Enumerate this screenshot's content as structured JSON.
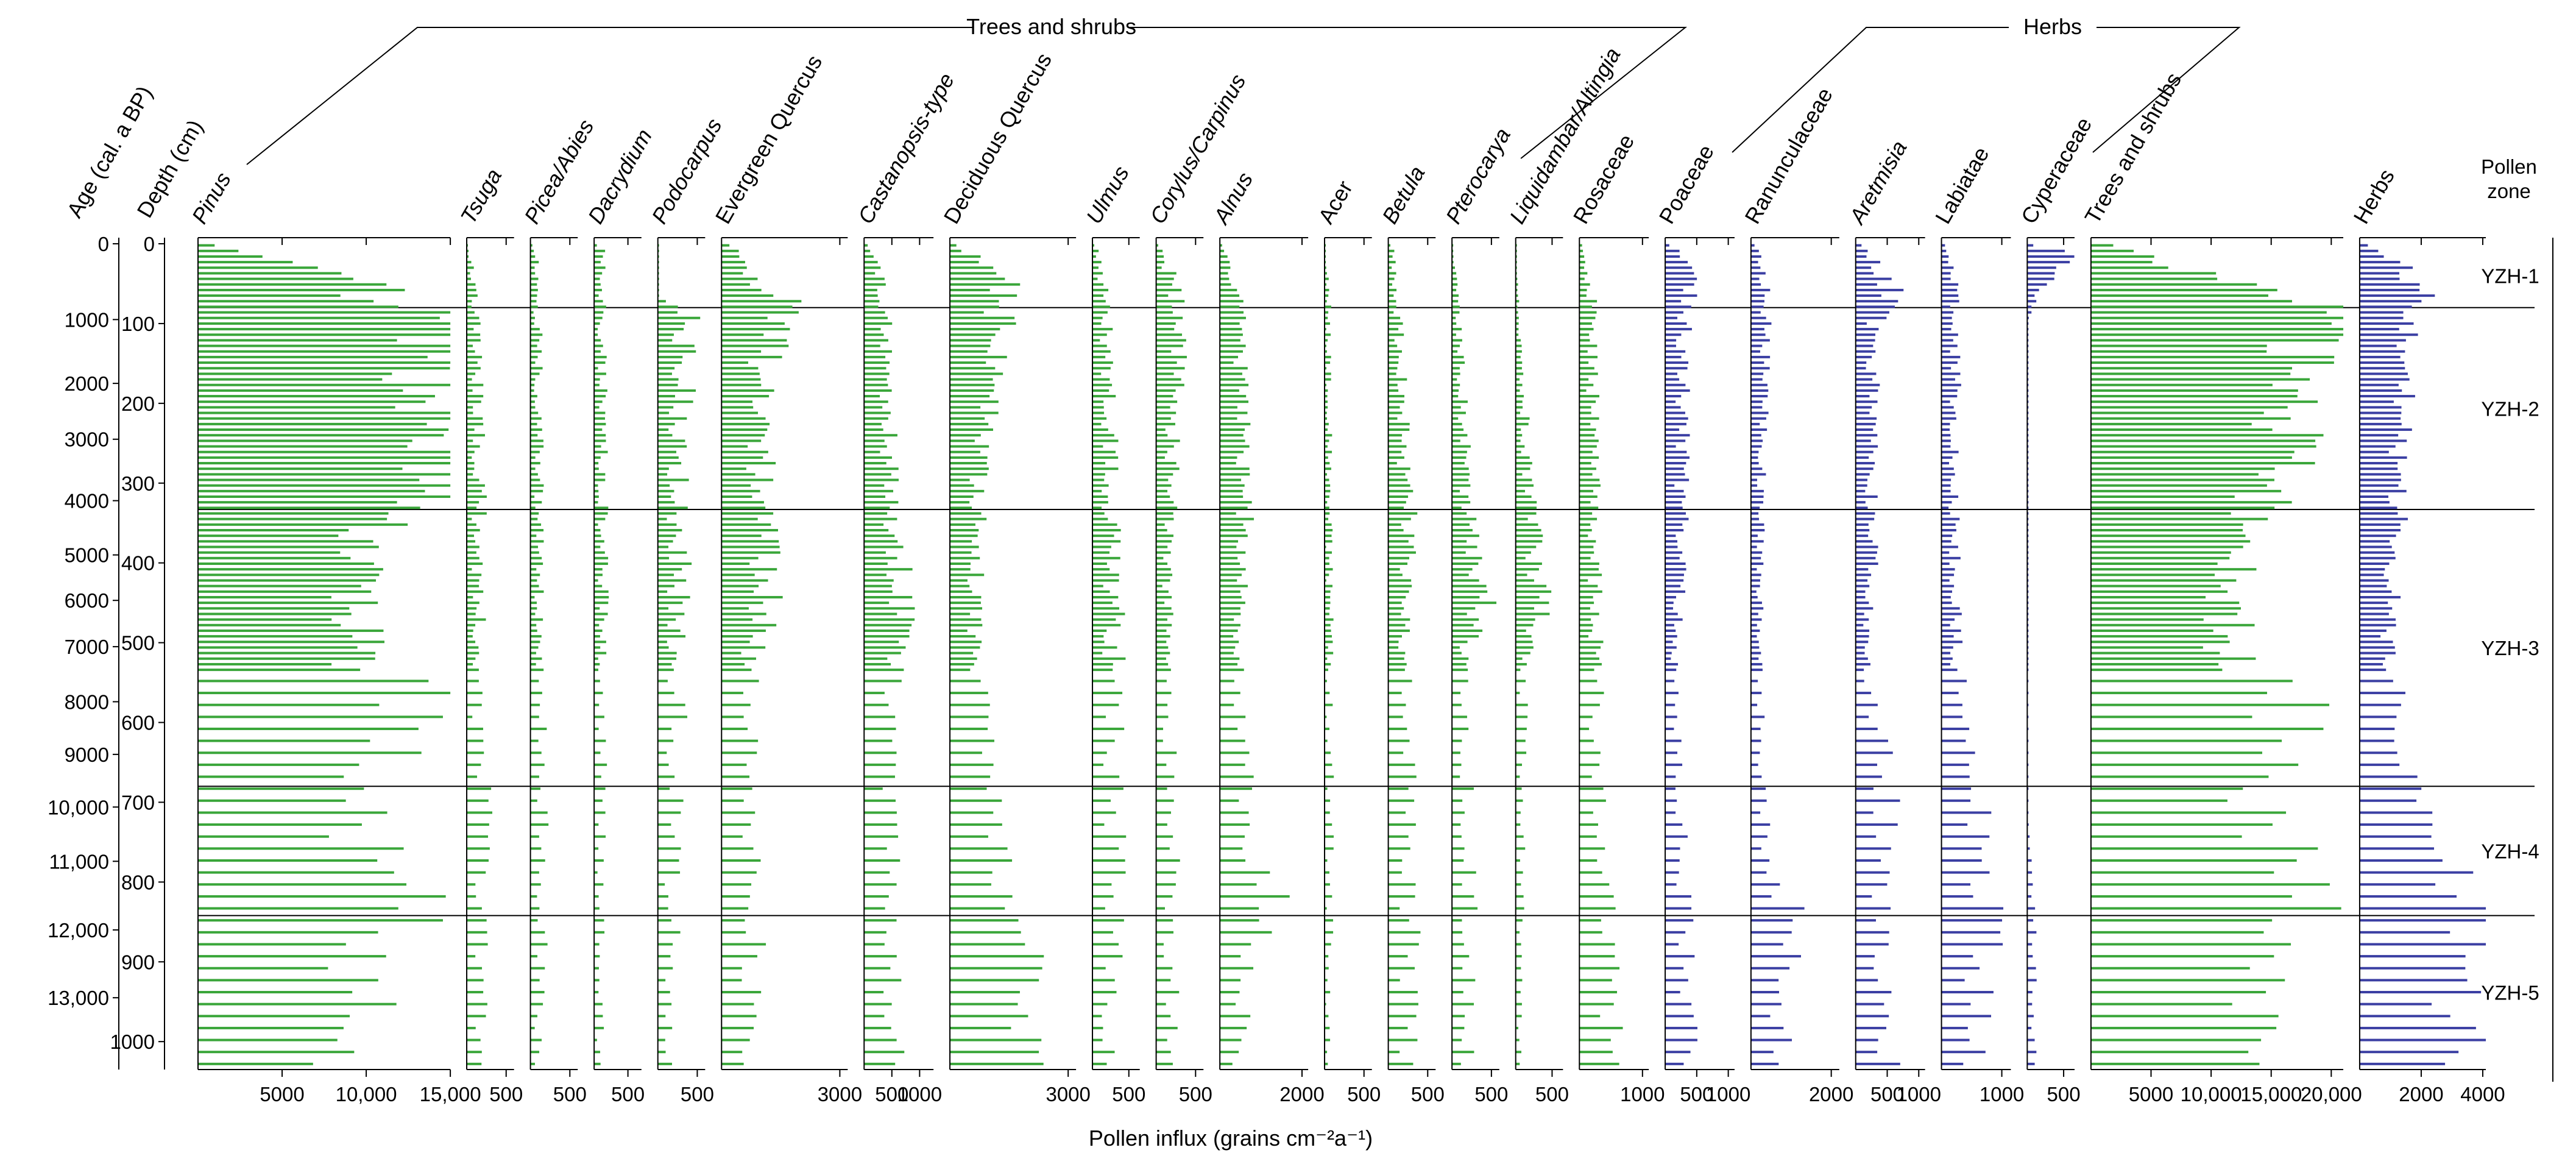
{
  "chart_data": {
    "type": "bar",
    "subtype": "pollen-influx-diagram",
    "xlabel": "Pollen influx (grains cm⁻²a⁻¹)",
    "left_axes": {
      "age_label": "Age (cal. a BP)",
      "depth_label": "Depth (cm)",
      "age_ticks": [
        "0",
        "1000",
        "2000",
        "3000",
        "4000",
        "5000",
        "6000",
        "7000",
        "8000",
        "9000",
        "10,000",
        "11,000",
        "12,000",
        "13,000"
      ],
      "depth_ticks": [
        "0",
        "100",
        "200",
        "300",
        "400",
        "500",
        "600",
        "700",
        "800",
        "900",
        "1000"
      ],
      "depth_range": [
        0,
        1035
      ]
    },
    "groups": [
      {
        "name": "Trees and shrubs"
      },
      {
        "name": "Herbs"
      }
    ],
    "zones_header": "Pollen\nzone",
    "zones": [
      {
        "name": "YZH-1",
        "from_depth": 0,
        "to_depth": 110
      },
      {
        "name": "YZH-2",
        "from_depth": 110,
        "to_depth": 510
      },
      {
        "name": "YZH-3",
        "from_depth": 510,
        "to_depth": 1010
      },
      {
        "name": "YZH-4",
        "from_depth": 1010,
        "to_depth": 1330
      },
      {
        "name": "YZH-5",
        "from_depth": 1330,
        "to_depth": 1535
      }
    ],
    "colors": {
      "trees": "#3aa63a",
      "herbs": "#3b3fa3",
      "axis": "#000000"
    },
    "taxa": [
      {
        "name": "Pinus",
        "italic": true,
        "group": "trees",
        "max": 15000,
        "tick_values": [
          5000,
          10000,
          15000
        ],
        "tick_labels": [
          "5000",
          "10,000",
          "15,000"
        ],
        "y_label": "",
        "profile": [
          [
            0,
            1000
          ],
          [
            12,
            2600
          ],
          [
            30,
            6000
          ],
          [
            45,
            9000
          ],
          [
            60,
            11000
          ],
          [
            75,
            8000
          ],
          [
            85,
            14800
          ],
          [
            150,
            14000
          ],
          [
            250,
            14200
          ],
          [
            330,
            13500
          ],
          [
            340,
            10500
          ],
          [
            420,
            9500
          ],
          [
            520,
            9000
          ],
          [
            560,
            14500
          ],
          [
            640,
            11000
          ],
          [
            700,
            9000
          ],
          [
            780,
            10500
          ],
          [
            840,
            13000
          ],
          [
            880,
            9000
          ],
          [
            940,
            10000
          ],
          [
            1000,
            8500
          ],
          [
            1035,
            6500
          ]
        ],
        "amp": 0.22
      },
      {
        "name": "Tsuga",
        "italic": true,
        "group": "trees",
        "max": 600,
        "tick_values": [
          500
        ],
        "tick_labels": [
          "500"
        ],
        "profile": [
          [
            0,
            0
          ],
          [
            30,
            80
          ],
          [
            100,
            120
          ],
          [
            300,
            160
          ],
          [
            600,
            150
          ],
          [
            800,
            260
          ],
          [
            1035,
            130
          ]
        ],
        "amp": 0.6
      },
      {
        "name": "Picea/Abies",
        "italic": true,
        "group": "trees",
        "max": 600,
        "tick_values": [
          500
        ],
        "tick_labels": [
          "500"
        ],
        "profile": [
          [
            0,
            60
          ],
          [
            100,
            100
          ],
          [
            500,
            120
          ],
          [
            800,
            160
          ],
          [
            1035,
            90
          ]
        ],
        "amp": 0.6
      },
      {
        "name": "Dacrydium",
        "italic": true,
        "group": "trees",
        "max": 700,
        "tick_values": [
          500
        ],
        "tick_labels": [
          "500"
        ],
        "profile": [
          [
            0,
            100
          ],
          [
            80,
            120
          ],
          [
            400,
            140
          ],
          [
            700,
            120
          ],
          [
            1035,
            90
          ]
        ],
        "amp": 0.6
      },
      {
        "name": "Podocarpus",
        "italic": true,
        "group": "trees",
        "max": 600,
        "tick_values": [
          500
        ],
        "tick_labels": [
          "500"
        ],
        "profile": [
          [
            0,
            0
          ],
          [
            70,
            0
          ],
          [
            80,
            380
          ],
          [
            250,
            300
          ],
          [
            500,
            260
          ],
          [
            800,
            200
          ],
          [
            1035,
            120
          ]
        ],
        "amp": 0.6
      },
      {
        "name": "Evergreen Quercus",
        "italic": false,
        "group": "trees",
        "max": 3200,
        "tick_values": [
          3000
        ],
        "tick_labels": [
          "3000"
        ],
        "profile": [
          [
            0,
            300
          ],
          [
            40,
            900
          ],
          [
            80,
            1600
          ],
          [
            150,
            1100
          ],
          [
            300,
            1000
          ],
          [
            450,
            1200
          ],
          [
            520,
            700
          ],
          [
            700,
            700
          ],
          [
            850,
            900
          ],
          [
            1035,
            700
          ]
        ],
        "amp": 0.4
      },
      {
        "name": "Castanopsis-type",
        "italic": true,
        "group": "trees",
        "max": 1250,
        "tick_values": [
          500,
          1000
        ],
        "tick_labels": [
          "500",
          "1000"
        ],
        "profile": [
          [
            0,
            100
          ],
          [
            80,
            400
          ],
          [
            300,
            450
          ],
          [
            450,
            700
          ],
          [
            520,
            550
          ],
          [
            800,
            500
          ],
          [
            1035,
            520
          ]
        ],
        "amp": 0.4
      },
      {
        "name": "Deciduous Quercus",
        "italic": false,
        "group": "trees",
        "max": 3200,
        "tick_values": [
          3000
        ],
        "tick_labels": [
          "3000"
        ],
        "profile": [
          [
            0,
            200
          ],
          [
            50,
            1500
          ],
          [
            80,
            1300
          ],
          [
            300,
            700
          ],
          [
            520,
            650
          ],
          [
            760,
            1100
          ],
          [
            850,
            2000
          ],
          [
            1035,
            1800
          ]
        ],
        "amp": 0.35
      },
      {
        "name": "Ulmus",
        "italic": true,
        "group": "trees",
        "max": 650,
        "tick_values": [
          500
        ],
        "tick_labels": [
          "500"
        ],
        "profile": [
          [
            0,
            50
          ],
          [
            80,
            180
          ],
          [
            300,
            250
          ],
          [
            500,
            300
          ],
          [
            800,
            300
          ],
          [
            1035,
            250
          ]
        ],
        "amp": 0.55
      },
      {
        "name": "Corylus/Carpinus",
        "italic": true,
        "group": "trees",
        "max": 600,
        "tick_values": [
          500
        ],
        "tick_labels": [
          "500"
        ],
        "profile": [
          [
            0,
            50
          ],
          [
            80,
            300
          ],
          [
            300,
            200
          ],
          [
            520,
            150
          ],
          [
            800,
            200
          ],
          [
            1035,
            180
          ]
        ],
        "amp": 0.55
      },
      {
        "name": "Alnus",
        "italic": true,
        "group": "trees",
        "max": 2150,
        "tick_values": [
          2000
        ],
        "tick_labels": [
          "2000"
        ],
        "profile": [
          [
            0,
            80
          ],
          [
            80,
            450
          ],
          [
            340,
            600
          ],
          [
            520,
            400
          ],
          [
            760,
            800
          ],
          [
            820,
            1600
          ],
          [
            900,
            600
          ],
          [
            1035,
            500
          ]
        ],
        "amp": 0.4
      },
      {
        "name": "Acer",
        "italic": false,
        "group": "trees",
        "max": 600,
        "tick_values": [
          500
        ],
        "tick_labels": [
          "500"
        ],
        "profile": [
          [
            0,
            0
          ],
          [
            60,
            50
          ],
          [
            300,
            60
          ],
          [
            800,
            80
          ],
          [
            1035,
            50
          ]
        ],
        "amp": 0.7
      },
      {
        "name": "Betula",
        "italic": true,
        "group": "trees",
        "max": 600,
        "tick_values": [
          500
        ],
        "tick_labels": [
          "500"
        ],
        "profile": [
          [
            0,
            50
          ],
          [
            80,
            120
          ],
          [
            340,
            250
          ],
          [
            520,
            200
          ],
          [
            800,
            280
          ],
          [
            1035,
            260
          ]
        ],
        "amp": 0.5
      },
      {
        "name": "Pterocarya",
        "italic": true,
        "group": "trees",
        "max": 600,
        "tick_values": [
          500
        ],
        "tick_labels": [
          "500"
        ],
        "profile": [
          [
            0,
            0
          ],
          [
            80,
            80
          ],
          [
            340,
            200
          ],
          [
            450,
            380
          ],
          [
            520,
            150
          ],
          [
            800,
            220
          ],
          [
            1035,
            200
          ]
        ],
        "amp": 0.5
      },
      {
        "name": "Liquidambar/Altingia",
        "italic": true,
        "group": "trees",
        "max": 650,
        "tick_values": [
          500
        ],
        "tick_labels": [
          "500"
        ],
        "profile": [
          [
            0,
            0
          ],
          [
            80,
            40
          ],
          [
            340,
            200
          ],
          [
            450,
            380
          ],
          [
            520,
            120
          ],
          [
            800,
            80
          ],
          [
            1035,
            60
          ]
        ],
        "amp": 0.55
      },
      {
        "name": "Rosaceae",
        "italic": false,
        "group": "trees",
        "max": 1100,
        "tick_values": [
          1000
        ],
        "tick_labels": [
          "1000"
        ],
        "profile": [
          [
            0,
            80
          ],
          [
            80,
            200
          ],
          [
            400,
            250
          ],
          [
            700,
            300
          ],
          [
            900,
            450
          ],
          [
            1035,
            500
          ]
        ],
        "amp": 0.5
      },
      {
        "name": "Poaceae",
        "italic": false,
        "group": "herbs",
        "max": 1100,
        "tick_values": [
          500,
          1000
        ],
        "tick_labels": [
          "500",
          "1000"
        ],
        "profile": [
          [
            0,
            100
          ],
          [
            50,
            500
          ],
          [
            80,
            300
          ],
          [
            400,
            250
          ],
          [
            520,
            150
          ],
          [
            800,
            280
          ],
          [
            1035,
            450
          ]
        ],
        "amp": 0.45
      },
      {
        "name": "Ranunculaceae",
        "italic": false,
        "group": "herbs",
        "max": 2200,
        "tick_values": [
          2000
        ],
        "tick_labels": [
          "2000"
        ],
        "profile": [
          [
            0,
            150
          ],
          [
            80,
            400
          ],
          [
            300,
            250
          ],
          [
            520,
            200
          ],
          [
            760,
            400
          ],
          [
            830,
            1000
          ],
          [
            920,
            800
          ],
          [
            1035,
            700
          ]
        ],
        "amp": 0.45
      },
      {
        "name": "Aretmisia",
        "italic": true,
        "group": "herbs",
        "max": 1100,
        "tick_values": [
          500,
          1000
        ],
        "tick_labels": [
          "500",
          "1000"
        ],
        "profile": [
          [
            0,
            150
          ],
          [
            70,
            650
          ],
          [
            100,
            300
          ],
          [
            400,
            250
          ],
          [
            520,
            150
          ],
          [
            680,
            500
          ],
          [
            800,
            400
          ],
          [
            1035,
            550
          ]
        ],
        "amp": 0.45
      },
      {
        "name": "Labiatae",
        "italic": false,
        "group": "herbs",
        "max": 1150,
        "tick_values": [
          1000
        ],
        "tick_labels": [
          "1000"
        ],
        "profile": [
          [
            0,
            100
          ],
          [
            80,
            250
          ],
          [
            300,
            200
          ],
          [
            520,
            250
          ],
          [
            760,
            650
          ],
          [
            830,
            800
          ],
          [
            940,
            600
          ],
          [
            1035,
            500
          ]
        ],
        "amp": 0.45
      },
      {
        "name": "Cyperaceae",
        "italic": false,
        "group": "herbs",
        "max": 650,
        "tick_values": [
          500
        ],
        "tick_labels": [
          "500"
        ],
        "profile": [
          [
            0,
            100
          ],
          [
            15,
            550
          ],
          [
            30,
            400
          ],
          [
            60,
            120
          ],
          [
            100,
            0
          ],
          [
            700,
            0
          ],
          [
            800,
            80
          ],
          [
            1035,
            100
          ]
        ],
        "amp": 0.5
      },
      {
        "name": "Trees and shrubs",
        "italic": false,
        "group": "trees",
        "max": 21000,
        "tick_values": [
          5000,
          10000,
          15000,
          20000
        ],
        "tick_labels": [
          "5000",
          "10,000",
          "15,000",
          "20,000"
        ],
        "profile": [
          [
            0,
            2000
          ],
          [
            20,
            5000
          ],
          [
            45,
            11000
          ],
          [
            70,
            19000
          ],
          [
            80,
            20000
          ],
          [
            150,
            17500
          ],
          [
            300,
            15500
          ],
          [
            400,
            12000
          ],
          [
            520,
            11500
          ],
          [
            560,
            17500
          ],
          [
            700,
            13500
          ],
          [
            830,
            19000
          ],
          [
            900,
            15000
          ],
          [
            1035,
            12000
          ]
        ],
        "amp": 0.2
      },
      {
        "name": "Herbs",
        "italic": false,
        "group": "herbs",
        "max": 4100,
        "tick_values": [
          2000,
          4000
        ],
        "tick_labels": [
          "2000",
          "4000"
        ],
        "profile": [
          [
            0,
            300
          ],
          [
            40,
            1800
          ],
          [
            75,
            2200
          ],
          [
            100,
            1500
          ],
          [
            300,
            1300
          ],
          [
            520,
            900
          ],
          [
            620,
            1500
          ],
          [
            760,
            2200
          ],
          [
            830,
            3800
          ],
          [
            900,
            3200
          ],
          [
            1035,
            3300
          ]
        ],
        "amp": 0.3
      }
    ]
  }
}
